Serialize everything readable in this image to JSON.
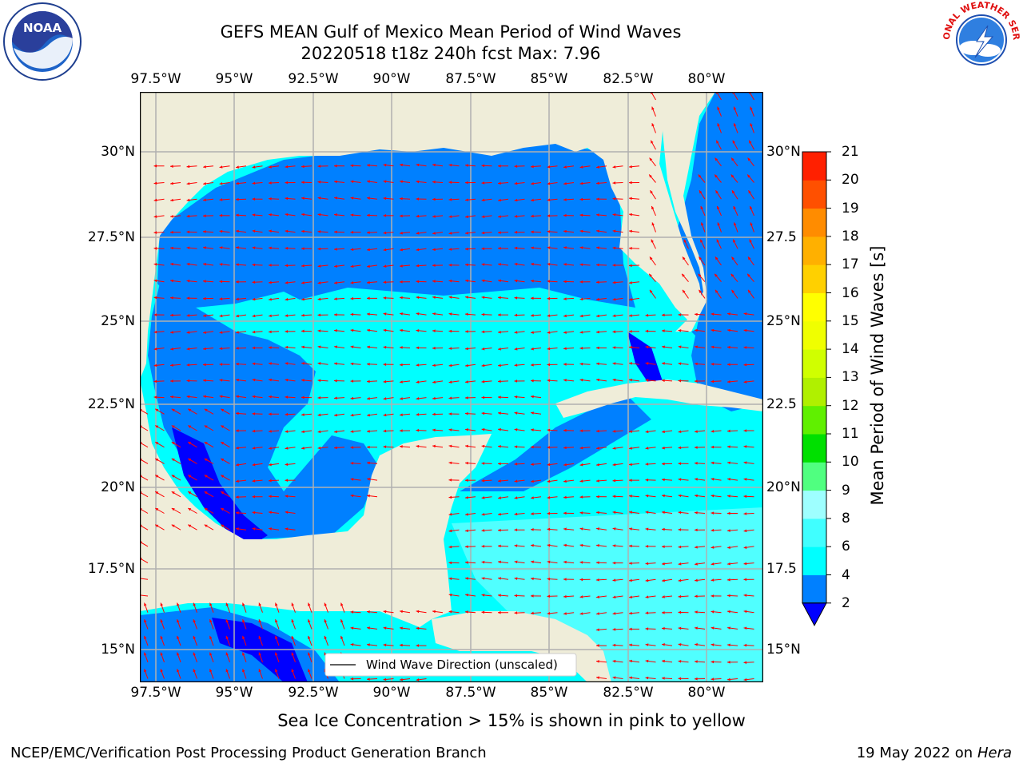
{
  "header": {
    "line1": "GEFS MEAN Gulf of Mexico Mean Period of Wind Waves",
    "line2": "20220518 t18z 240h fcst   Max: 7.96"
  },
  "map": {
    "lon_ticks": [
      "97.5°W",
      "95°W",
      "92.5°W",
      "90°W",
      "87.5°W",
      "85°W",
      "82.5°W",
      "80°W"
    ],
    "lat_ticks": [
      "30°N",
      "27.5°N",
      "25°N",
      "22.5°N",
      "20°N",
      "17.5°N",
      "15°N"
    ],
    "lat_ticks_right": [
      "30°N",
      "27.5",
      "25°N",
      "22.5",
      "20°N",
      "17.5",
      "15°N"
    ],
    "legend_label": "Wind Wave Direction (unscaled)",
    "colors": {
      "land": "#efedd9",
      "sea_low": "#0080ff",
      "sea_mid": "#00ffff",
      "sea_high": "#50ffff",
      "sea_deep": "#0000ff",
      "arrow": "#ff0000"
    }
  },
  "colorbar": {
    "title": "Mean Period of Wind Waves [s]",
    "labels": [
      "2",
      "4",
      "6",
      "8",
      "9",
      "10",
      "11",
      "12",
      "13",
      "14",
      "15",
      "16",
      "17",
      "18",
      "19",
      "20",
      "21"
    ],
    "colors": [
      "#0080ff",
      "#00ffff",
      "#40ffff",
      "#9effff",
      "#50ff80",
      "#00e000",
      "#60f000",
      "#b0f000",
      "#d0ff00",
      "#f0ff00",
      "#ffff00",
      "#ffd000",
      "#ffb000",
      "#ff8c00",
      "#ff5000",
      "#ff2000"
    ],
    "under_color": "#0000ff"
  },
  "footer": {
    "sea_ice_note": "Sea Ice Concentration > 15% is shown in pink to yellow",
    "branch": "NCEP/EMC/Verification Post Processing Product Generation Branch",
    "date": "19 May 2022 on",
    "host": "Hera"
  },
  "logos": {
    "noaa": "NOAA",
    "nws": "NATIONAL WEATHER SERVICE"
  }
}
